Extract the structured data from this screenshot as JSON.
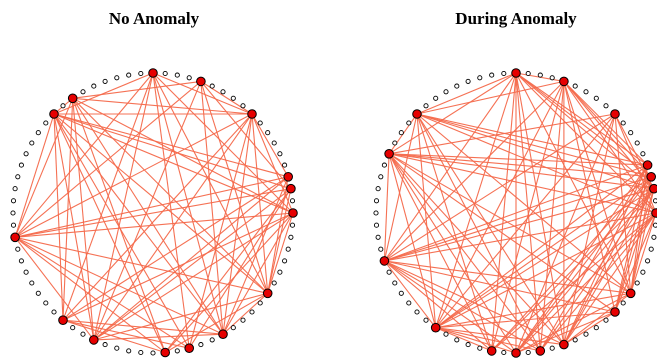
{
  "colors": {
    "edge": "#f4694b",
    "hub_fill": "#e60000",
    "node_fill": "#ffffff",
    "node_stroke": "#000000",
    "title": "#000000"
  },
  "panels": [
    {
      "title": "No Anomaly",
      "node_count": 72,
      "hubs": [
        0,
        4,
        9,
        15,
        16,
        18,
        25,
        30,
        33,
        35,
        41,
        44,
        52,
        63,
        65
      ],
      "edges": [
        [
          0,
          9
        ],
        [
          0,
          25
        ],
        [
          0,
          44
        ],
        [
          0,
          52
        ],
        [
          0,
          30
        ],
        [
          0,
          41
        ],
        [
          0,
          63
        ],
        [
          0,
          33
        ],
        [
          0,
          18
        ],
        [
          4,
          9
        ],
        [
          4,
          16
        ],
        [
          4,
          25
        ],
        [
          4,
          30
        ],
        [
          4,
          52
        ],
        [
          4,
          65
        ],
        [
          4,
          41
        ],
        [
          9,
          15
        ],
        [
          9,
          25
        ],
        [
          9,
          30
        ],
        [
          9,
          33
        ],
        [
          9,
          41
        ],
        [
          9,
          44
        ],
        [
          9,
          52
        ],
        [
          9,
          63
        ],
        [
          9,
          65
        ],
        [
          9,
          18
        ],
        [
          15,
          25
        ],
        [
          15,
          41
        ],
        [
          15,
          52
        ],
        [
          15,
          63
        ],
        [
          15,
          30
        ],
        [
          15,
          44
        ],
        [
          16,
          25
        ],
        [
          16,
          52
        ],
        [
          16,
          63
        ],
        [
          16,
          33
        ],
        [
          16,
          41
        ],
        [
          16,
          35
        ],
        [
          18,
          25
        ],
        [
          18,
          30
        ],
        [
          18,
          52
        ],
        [
          18,
          63
        ],
        [
          18,
          41
        ],
        [
          18,
          44
        ],
        [
          18,
          65
        ],
        [
          18,
          35
        ],
        [
          25,
          30
        ],
        [
          25,
          35
        ],
        [
          25,
          52
        ],
        [
          25,
          63
        ],
        [
          25,
          65
        ],
        [
          25,
          41
        ],
        [
          30,
          41
        ],
        [
          30,
          52
        ],
        [
          30,
          63
        ],
        [
          30,
          65
        ],
        [
          30,
          44
        ],
        [
          33,
          52
        ],
        [
          33,
          63
        ],
        [
          33,
          44
        ],
        [
          35,
          52
        ],
        [
          35,
          63
        ],
        [
          35,
          65
        ],
        [
          35,
          44
        ],
        [
          41,
          63
        ],
        [
          41,
          65
        ],
        [
          41,
          52
        ],
        [
          44,
          63
        ],
        [
          44,
          65
        ],
        [
          52,
          63
        ],
        [
          52,
          65
        ],
        [
          63,
          65
        ]
      ]
    },
    {
      "title": "During Anomaly",
      "node_count": 72,
      "hubs": [
        0,
        4,
        9,
        14,
        15,
        16,
        18,
        25,
        27,
        32,
        34,
        36,
        38,
        43,
        50,
        59,
        63
      ],
      "edges": [
        [
          0,
          4
        ],
        [
          0,
          14
        ],
        [
          0,
          16
        ],
        [
          0,
          18
        ],
        [
          0,
          25
        ],
        [
          0,
          32
        ],
        [
          0,
          34
        ],
        [
          0,
          36
        ],
        [
          0,
          38
        ],
        [
          0,
          43
        ],
        [
          0,
          50
        ],
        [
          0,
          59
        ],
        [
          0,
          63
        ],
        [
          0,
          15
        ],
        [
          4,
          14
        ],
        [
          4,
          16
        ],
        [
          4,
          18
        ],
        [
          4,
          25
        ],
        [
          4,
          32
        ],
        [
          4,
          34
        ],
        [
          4,
          38
        ],
        [
          4,
          43
        ],
        [
          4,
          50
        ],
        [
          4,
          63
        ],
        [
          4,
          15
        ],
        [
          4,
          27
        ],
        [
          9,
          16
        ],
        [
          9,
          18
        ],
        [
          9,
          25
        ],
        [
          9,
          32
        ],
        [
          9,
          36
        ],
        [
          9,
          43
        ],
        [
          9,
          50
        ],
        [
          9,
          59
        ],
        [
          14,
          25
        ],
        [
          14,
          32
        ],
        [
          14,
          34
        ],
        [
          14,
          36
        ],
        [
          14,
          43
        ],
        [
          14,
          50
        ],
        [
          14,
          59
        ],
        [
          14,
          63
        ],
        [
          14,
          27
        ],
        [
          15,
          25
        ],
        [
          15,
          32
        ],
        [
          15,
          36
        ],
        [
          15,
          38
        ],
        [
          15,
          43
        ],
        [
          15,
          50
        ],
        [
          15,
          59
        ],
        [
          15,
          63
        ],
        [
          15,
          27
        ],
        [
          16,
          25
        ],
        [
          16,
          27
        ],
        [
          16,
          32
        ],
        [
          16,
          34
        ],
        [
          16,
          36
        ],
        [
          16,
          38
        ],
        [
          16,
          43
        ],
        [
          16,
          50
        ],
        [
          16,
          59
        ],
        [
          16,
          63
        ],
        [
          18,
          25
        ],
        [
          18,
          27
        ],
        [
          18,
          32
        ],
        [
          18,
          34
        ],
        [
          18,
          36
        ],
        [
          18,
          38
        ],
        [
          18,
          43
        ],
        [
          18,
          50
        ],
        [
          18,
          59
        ],
        [
          18,
          63
        ],
        [
          25,
          32
        ],
        [
          25,
          36
        ],
        [
          25,
          43
        ],
        [
          25,
          50
        ],
        [
          25,
          59
        ],
        [
          25,
          63
        ],
        [
          27,
          32
        ],
        [
          27,
          36
        ],
        [
          27,
          43
        ],
        [
          27,
          50
        ],
        [
          27,
          59
        ],
        [
          32,
          43
        ],
        [
          32,
          50
        ],
        [
          32,
          59
        ],
        [
          32,
          63
        ],
        [
          34,
          43
        ],
        [
          34,
          50
        ],
        [
          34,
          59
        ],
        [
          34,
          63
        ],
        [
          36,
          43
        ],
        [
          36,
          50
        ],
        [
          36,
          59
        ],
        [
          38,
          43
        ],
        [
          38,
          50
        ],
        [
          38,
          59
        ],
        [
          38,
          63
        ],
        [
          43,
          50
        ],
        [
          43,
          59
        ],
        [
          43,
          63
        ],
        [
          50,
          59
        ],
        [
          50,
          63
        ],
        [
          59,
          63
        ]
      ]
    }
  ]
}
